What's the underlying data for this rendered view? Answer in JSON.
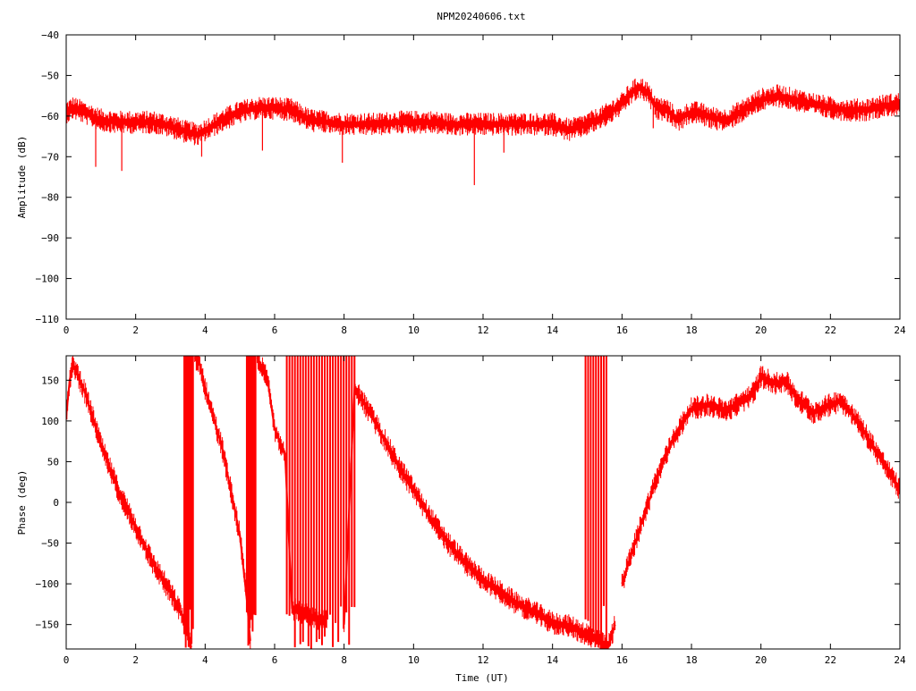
{
  "title": "NPM20240606.txt",
  "colors": {
    "trace": "#ff0000",
    "axis": "#000000",
    "background": "#ffffff"
  },
  "chart_data": [
    {
      "type": "line",
      "name": "amplitude-panel",
      "xlabel": "",
      "ylabel": "Amplitude (dB)",
      "xlim": [
        0,
        24
      ],
      "ylim": [
        -110,
        -40
      ],
      "xticks": [
        0,
        2,
        4,
        6,
        8,
        10,
        12,
        14,
        16,
        18,
        20,
        22,
        24
      ],
      "yticks": [
        -40,
        -50,
        -60,
        -70,
        -80,
        -90,
        -100,
        -110
      ],
      "grid": false,
      "series": [
        {
          "x": [
            0,
            0.2,
            0.5,
            1,
            1.5,
            2,
            2.5,
            3,
            3.5,
            3.8,
            4,
            4.5,
            5,
            5.5,
            6,
            6.5,
            7,
            7.5,
            8,
            8.5,
            9,
            9.5,
            10,
            10.5,
            11,
            11.5,
            12,
            12.5,
            13,
            13.5,
            14,
            14.5,
            15,
            15.5,
            16,
            16.3,
            16.5,
            16.7,
            17,
            17.3,
            17.6,
            18,
            18.3,
            18.6,
            19,
            19.5,
            20,
            20.5,
            21,
            21.5,
            22,
            22.5,
            23,
            23.5,
            24
          ],
          "y": [
            -59,
            -58,
            -59,
            -61,
            -61.5,
            -61.5,
            -61.5,
            -62.5,
            -64,
            -64.5,
            -63.5,
            -61,
            -59,
            -58,
            -58,
            -58.5,
            -61,
            -61.5,
            -62,
            -62,
            -62,
            -61.5,
            -61.5,
            -61.5,
            -62,
            -62,
            -62,
            -62,
            -62,
            -62,
            -62,
            -63.5,
            -62,
            -60,
            -57,
            -54,
            -53,
            -54,
            -58,
            -58.5,
            -61,
            -59,
            -59.5,
            -60.5,
            -61,
            -58.5,
            -56,
            -55,
            -56,
            -57,
            -58,
            -58.5,
            -58.5,
            -57.5,
            -57
          ]
        }
      ],
      "spikes": [
        {
          "x": 0.85,
          "y": -72.5
        },
        {
          "x": 1.6,
          "y": -73.5
        },
        {
          "x": 3.9,
          "y": -70
        },
        {
          "x": 5.65,
          "y": -68.5
        },
        {
          "x": 7.95,
          "y": -71.5
        },
        {
          "x": 11.75,
          "y": -77
        },
        {
          "x": 12.6,
          "y": -69
        },
        {
          "x": 16.9,
          "y": -63
        }
      ],
      "band_halfwidth": 1.6
    },
    {
      "type": "line",
      "name": "phase-panel",
      "xlabel": "Time (UT)",
      "ylabel": "Phase (deg)",
      "xlim": [
        0,
        24
      ],
      "ylim": [
        -180,
        180
      ],
      "xticks": [
        0,
        2,
        4,
        6,
        8,
        10,
        12,
        14,
        16,
        18,
        20,
        22,
        24
      ],
      "yticks": [
        150,
        100,
        50,
        0,
        -50,
        -100,
        -150
      ],
      "grid": false,
      "series": [
        {
          "x": [
            0,
            0.1,
            0.2,
            0.5,
            0.8,
            1,
            1.5,
            2,
            2.5,
            3,
            3.3,
            3.5,
            3.6,
            3.7,
            3.85,
            4,
            4.5,
            5,
            5.2,
            5.3,
            5.5,
            5.8,
            6,
            6.3,
            6.5,
            7,
            7.5,
            8,
            8.3,
            8.6,
            9,
            9.5,
            10,
            10.5,
            11,
            11.5,
            12,
            12.5,
            13,
            13.5,
            14,
            14.5,
            15,
            15.3,
            15.6,
            15.8,
            16,
            16.3,
            16.6,
            17,
            17.5,
            18,
            18.5,
            19,
            19.5,
            19.8,
            20,
            20.2,
            20.5,
            20.7,
            21,
            21.5,
            22,
            22.3,
            22.6,
            23,
            23.5,
            24
          ],
          "y": [
            105,
            150,
            170,
            140,
            100,
            70,
            15,
            -30,
            -75,
            -110,
            -135,
            -160,
            -178,
            178,
            170,
            140,
            65,
            -40,
            -120,
            -170,
            178,
            150,
            90,
            60,
            -130,
            -140,
            -145,
            -150,
            140,
            120,
            90,
            50,
            15,
            -20,
            -50,
            -75,
            -95,
            -110,
            -125,
            -135,
            -148,
            -152,
            -162,
            -170,
            -178,
            -150,
            -100,
            -60,
            -20,
            30,
            80,
            115,
            120,
            112,
            125,
            135,
            155,
            150,
            145,
            150,
            130,
            110,
            120,
            125,
            110,
            85,
            50,
            15
          ],
          "break_after_index": [
            12,
            19,
            26,
            45
          ]
        }
      ],
      "noisy_bands": [
        {
          "x0": 3.4,
          "x1": 3.65,
          "y0": -180,
          "y1": 180
        },
        {
          "x0": 5.2,
          "x1": 5.45,
          "y0": -180,
          "y1": 180
        },
        {
          "x0": 6.35,
          "x1": 8.3,
          "y0": -180,
          "y1": 180
        },
        {
          "x0": 14.95,
          "x1": 15.55,
          "y0": -180,
          "y1": 180
        }
      ],
      "band_halfwidth": 8
    }
  ]
}
